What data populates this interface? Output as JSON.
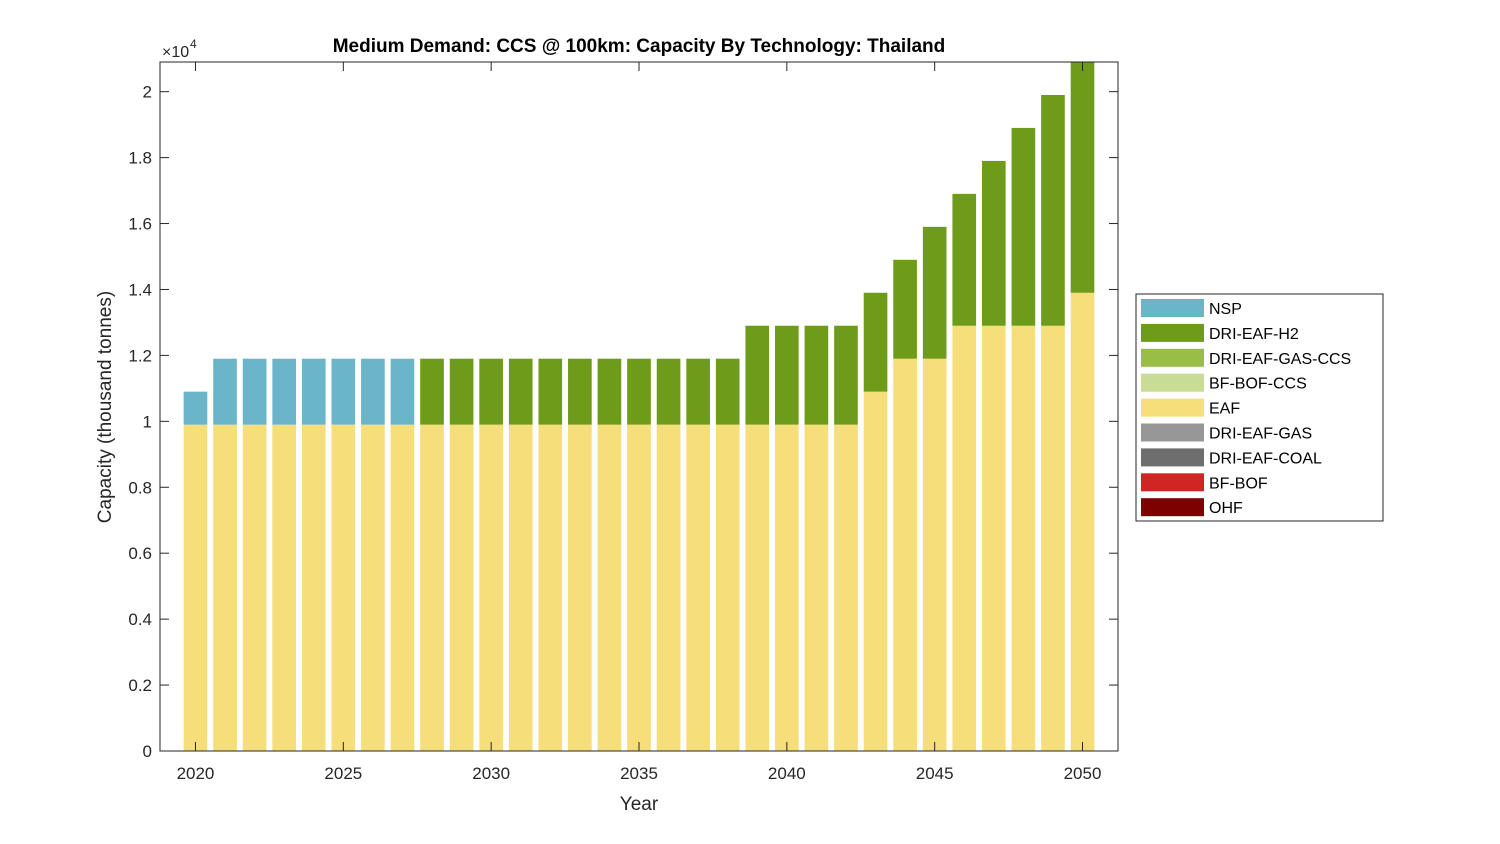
{
  "chart_data": {
    "type": "bar",
    "stacked": true,
    "title": "Medium Demand: CCS @ 100km: Capacity By Technology: Thailand",
    "xlabel": "Year",
    "ylabel": "Capacity (thousand tonnes)",
    "y_exponent_label": "×10",
    "y_exponent_power": "4",
    "ylim": [
      0,
      20900
    ],
    "xlim": [
      2018.8,
      2051.2
    ],
    "grid": false,
    "legend_position": "right",
    "x_ticks": [
      2020,
      2025,
      2030,
      2035,
      2040,
      2045,
      2050
    ],
    "x_tick_labels": [
      "2020",
      "2025",
      "2030",
      "2035",
      "2040",
      "2045",
      "2050"
    ],
    "y_ticks": [
      0,
      2000,
      4000,
      6000,
      8000,
      10000,
      12000,
      14000,
      16000,
      18000,
      20000
    ],
    "y_tick_labels": [
      "0",
      "0.2",
      "0.4",
      "0.6",
      "0.8",
      "1",
      "1.2",
      "1.4",
      "1.6",
      "1.8",
      "2"
    ],
    "categories": [
      2020,
      2021,
      2022,
      2023,
      2024,
      2025,
      2026,
      2027,
      2028,
      2029,
      2030,
      2031,
      2032,
      2033,
      2034,
      2035,
      2036,
      2037,
      2038,
      2039,
      2040,
      2041,
      2042,
      2043,
      2044,
      2045,
      2046,
      2047,
      2048,
      2049,
      2050
    ],
    "series": [
      {
        "name": "OHF",
        "color": "#7e0000",
        "values": [
          0,
          0,
          0,
          0,
          0,
          0,
          0,
          0,
          0,
          0,
          0,
          0,
          0,
          0,
          0,
          0,
          0,
          0,
          0,
          0,
          0,
          0,
          0,
          0,
          0,
          0,
          0,
          0,
          0,
          0,
          0
        ]
      },
      {
        "name": "BF-BOF",
        "color": "#d02525",
        "values": [
          0,
          0,
          0,
          0,
          0,
          0,
          0,
          0,
          0,
          0,
          0,
          0,
          0,
          0,
          0,
          0,
          0,
          0,
          0,
          0,
          0,
          0,
          0,
          0,
          0,
          0,
          0,
          0,
          0,
          0,
          0
        ]
      },
      {
        "name": "DRI-EAF-COAL",
        "color": "#6e6e6e",
        "values": [
          0,
          0,
          0,
          0,
          0,
          0,
          0,
          0,
          0,
          0,
          0,
          0,
          0,
          0,
          0,
          0,
          0,
          0,
          0,
          0,
          0,
          0,
          0,
          0,
          0,
          0,
          0,
          0,
          0,
          0,
          0
        ]
      },
      {
        "name": "DRI-EAF-GAS",
        "color": "#979797",
        "values": [
          0,
          0,
          0,
          0,
          0,
          0,
          0,
          0,
          0,
          0,
          0,
          0,
          0,
          0,
          0,
          0,
          0,
          0,
          0,
          0,
          0,
          0,
          0,
          0,
          0,
          0,
          0,
          0,
          0,
          0,
          0
        ]
      },
      {
        "name": "EAF",
        "color": "#f6de7a",
        "values": [
          9900,
          9900,
          9900,
          9900,
          9900,
          9900,
          9900,
          9900,
          9900,
          9900,
          9900,
          9900,
          9900,
          9900,
          9900,
          9900,
          9900,
          9900,
          9900,
          9900,
          9900,
          9900,
          9900,
          10900,
          11900,
          11900,
          12900,
          12900,
          12900,
          12900,
          13900
        ]
      },
      {
        "name": "BF-BOF-CCS",
        "color": "#c8dc96",
        "values": [
          0,
          0,
          0,
          0,
          0,
          0,
          0,
          0,
          0,
          0,
          0,
          0,
          0,
          0,
          0,
          0,
          0,
          0,
          0,
          0,
          0,
          0,
          0,
          0,
          0,
          0,
          0,
          0,
          0,
          0,
          0
        ]
      },
      {
        "name": "DRI-EAF-GAS-CCS",
        "color": "#98be48",
        "values": [
          0,
          0,
          0,
          0,
          0,
          0,
          0,
          0,
          0,
          0,
          0,
          0,
          0,
          0,
          0,
          0,
          0,
          0,
          0,
          0,
          0,
          0,
          0,
          0,
          0,
          0,
          0,
          0,
          0,
          0,
          0
        ]
      },
      {
        "name": "DRI-EAF-H2",
        "color": "#6f9b1a",
        "values": [
          0,
          0,
          0,
          0,
          0,
          0,
          0,
          0,
          2000,
          2000,
          2000,
          2000,
          2000,
          2000,
          2000,
          2000,
          2000,
          2000,
          2000,
          3000,
          3000,
          3000,
          3000,
          3000,
          3000,
          4000,
          4000,
          5000,
          6000,
          7000,
          7000
        ]
      },
      {
        "name": "NSP",
        "color": "#6ab6c8",
        "values": [
          1000,
          2000,
          2000,
          2000,
          2000,
          2000,
          2000,
          2000,
          0,
          0,
          0,
          0,
          0,
          0,
          0,
          0,
          0,
          0,
          0,
          0,
          0,
          0,
          0,
          0,
          0,
          0,
          0,
          0,
          0,
          0,
          0
        ]
      }
    ],
    "legend_order": [
      "NSP",
      "DRI-EAF-H2",
      "DRI-EAF-GAS-CCS",
      "BF-BOF-CCS",
      "EAF",
      "DRI-EAF-GAS",
      "DRI-EAF-COAL",
      "BF-BOF",
      "OHF"
    ]
  }
}
